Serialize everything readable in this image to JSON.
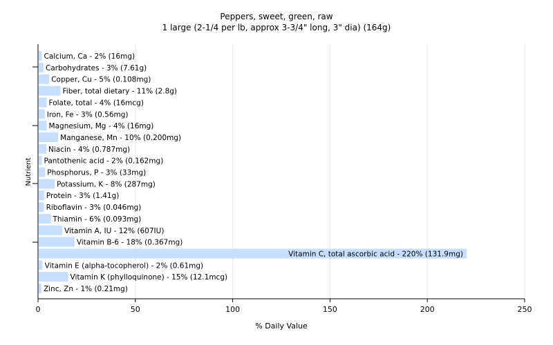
{
  "chart_data": {
    "type": "bar",
    "orientation": "horizontal",
    "title": "Peppers, sweet, green, raw",
    "subtitle": "1 large (2-1/4 per lb, approx 3-3/4\" long, 3\" dia) (164g)",
    "xlabel": "% Daily Value",
    "ylabel": "Nutrient",
    "xlim": [
      0,
      250
    ],
    "xticks": [
      "0",
      "50",
      "100",
      "150",
      "200",
      "250"
    ],
    "grid": true,
    "bar_color": "#c6deff",
    "grid_color": "#e6e6e6",
    "categories": [
      "Calcium, Ca",
      "Carbohydrates",
      "Copper, Cu",
      "Fiber, total dietary",
      "Folate, total",
      "Iron, Fe",
      "Magnesium, Mg",
      "Manganese, Mn",
      "Niacin",
      "Pantothenic acid",
      "Phosphorus, P",
      "Potassium, K",
      "Protein",
      "Riboflavin",
      "Thiamin",
      "Vitamin A, IU",
      "Vitamin B-6",
      "Vitamin C, total ascorbic acid",
      "Vitamin E (alpha-tocopherol)",
      "Vitamin K (phylloquinone)",
      "Zinc, Zn"
    ],
    "values": [
      1.6,
      2.5,
      5.4,
      11.2,
      4.1,
      3.1,
      4.1,
      10.0,
      3.9,
      1.6,
      3.3,
      8.2,
      2.8,
      2.7,
      6.2,
      12.1,
      18.4,
      219.8,
      2.0,
      15.1,
      1.4
    ],
    "labels": [
      "Calcium, Ca - 2% (16mg)",
      "Carbohydrates - 3% (7.61g)",
      "Copper, Cu - 5% (0.108mg)",
      "Fiber, total dietary - 11% (2.8g)",
      "Folate, total - 4% (16mcg)",
      "Iron, Fe - 3% (0.56mg)",
      "Magnesium, Mg - 4% (16mg)",
      "Manganese, Mn - 10% (0.200mg)",
      "Niacin - 4% (0.787mg)",
      "Pantothenic acid - 2% (0.162mg)",
      "Phosphorus, P - 3% (33mg)",
      "Potassium, K - 8% (287mg)",
      "Protein - 3% (1.41g)",
      "Riboflavin - 3% (0.046mg)",
      "Thiamin - 6% (0.093mg)",
      "Vitamin A, IU - 12% (607IU)",
      "Vitamin B-6 - 18% (0.367mg)",
      "Vitamin C, total ascorbic acid - 220% (131.9mg)",
      "Vitamin E (alpha-tocopherol) - 2% (0.61mg)",
      "Vitamin K (phylloquinone) - 15% (12.1mcg)",
      "Zinc, Zn - 1% (0.21mg)"
    ]
  }
}
